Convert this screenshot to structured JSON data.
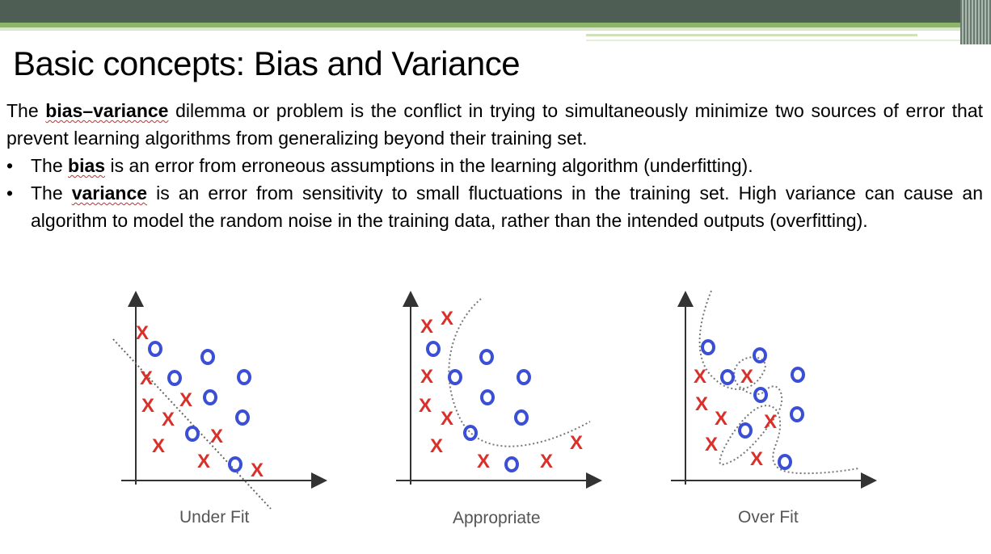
{
  "title": "Basic concepts: Bias and Variance",
  "intro": {
    "the": "The",
    "term": "bias–variance",
    "rest": "dilemma or problem is the conflict in trying to simultaneously minimize two sources of error that prevent learning algorithms from generalizing beyond their training set."
  },
  "bullets": [
    {
      "lead": "The",
      "term": "bias",
      "rest": "is an error from erroneous assumptions in the learning algorithm (underfitting)."
    },
    {
      "lead": "The",
      "term": "variance",
      "rest": "is an error from sensitivity to small fluctuations in the training set. High variance can cause an algorithm to model the random noise in the training data, rather than the intended outputs (overfitting)."
    }
  ],
  "panels": [
    {
      "label": "Under Fit"
    },
    {
      "label": "Appropriate"
    },
    {
      "label": "Over Fit"
    }
  ],
  "colors": {
    "x_mark": "#d9302a",
    "o_mark": "#3a4fd6",
    "axis": "#333333"
  }
}
